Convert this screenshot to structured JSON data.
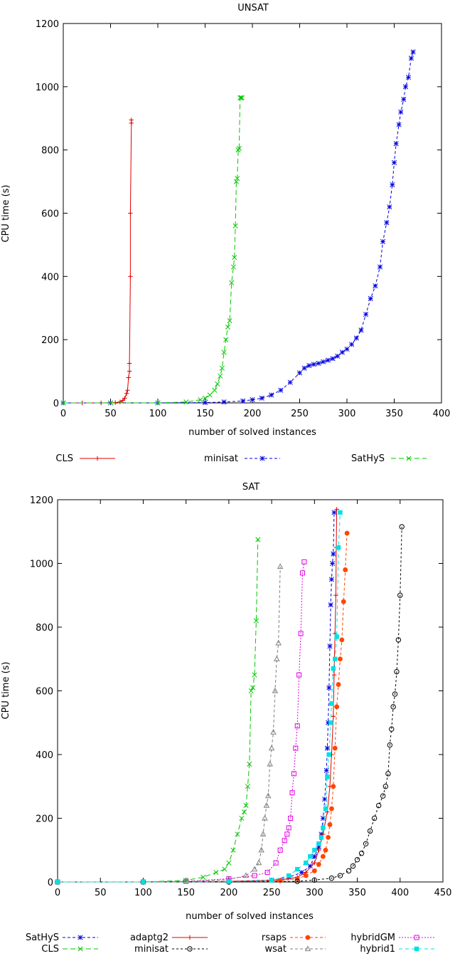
{
  "chart_data": [
    {
      "type": "line",
      "title": "UNSAT",
      "xlabel": "number of solved instances",
      "ylabel": "CPU time (s)",
      "xlim": [
        0,
        400
      ],
      "ylim": [
        0,
        1200
      ],
      "xticks": [
        "0",
        "50",
        "100",
        "150",
        "200",
        "250",
        "300",
        "350",
        "400"
      ],
      "yticks": [
        "0",
        "200",
        "400",
        "600",
        "800",
        "1000",
        "1200"
      ],
      "series": [
        {
          "name": "CLS",
          "color": "#e00000",
          "marker": "plus",
          "dash": "solid",
          "x": [
            0,
            20,
            40,
            55,
            60,
            63,
            65,
            67,
            68,
            69,
            70,
            70,
            71,
            71,
            72,
            72
          ],
          "y": [
            0,
            0,
            0,
            1,
            3,
            8,
            15,
            30,
            40,
            80,
            100,
            125,
            400,
            600,
            885,
            895
          ]
        },
        {
          "name": "minisat",
          "color": "#0000e0",
          "marker": "star",
          "dash": "4,3",
          "x": [
            0,
            50,
            100,
            150,
            170,
            190,
            200,
            210,
            220,
            230,
            240,
            250,
            255,
            260,
            265,
            270,
            275,
            280,
            285,
            290,
            295,
            300,
            305,
            310,
            315,
            320,
            325,
            330,
            335,
            338,
            342,
            345,
            348,
            350,
            352,
            355,
            357,
            360,
            362,
            365,
            368,
            370
          ],
          "y": [
            0,
            0,
            0,
            1,
            3,
            6,
            10,
            15,
            25,
            40,
            65,
            95,
            110,
            118,
            122,
            125,
            130,
            135,
            140,
            148,
            160,
            170,
            185,
            205,
            230,
            280,
            330,
            370,
            430,
            510,
            570,
            620,
            690,
            760,
            820,
            880,
            920,
            960,
            1000,
            1030,
            1090,
            1110
          ]
        },
        {
          "name": "SatHyS",
          "color": "#00c800",
          "marker": "cross",
          "dash": "7,4",
          "x": [
            0,
            50,
            100,
            130,
            145,
            150,
            155,
            160,
            163,
            166,
            168,
            170,
            172,
            174,
            176,
            178,
            180,
            181,
            182,
            183,
            184,
            185,
            186,
            187,
            188,
            189
          ],
          "y": [
            0,
            0,
            0,
            3,
            10,
            15,
            25,
            40,
            60,
            85,
            110,
            160,
            200,
            240,
            260,
            380,
            430,
            460,
            560,
            700,
            710,
            800,
            805,
            965,
            965,
            965
          ]
        }
      ],
      "legend": {
        "placement": "below",
        "entries": [
          "CLS",
          "minisat",
          "SatHyS"
        ]
      }
    },
    {
      "type": "line",
      "title": "SAT",
      "xlabel": "number of solved instances",
      "ylabel": "CPU time (s)",
      "xlim": [
        0,
        450
      ],
      "ylim": [
        0,
        1200
      ],
      "xticks": [
        "0",
        "50",
        "100",
        "150",
        "200",
        "250",
        "300",
        "350",
        "400",
        "450"
      ],
      "yticks": [
        "0",
        "200",
        "400",
        "600",
        "800",
        "1000",
        "1200"
      ],
      "series": [
        {
          "name": "SatHyS",
          "color": "#0000e0",
          "marker": "star",
          "dash": "4,3",
          "x": [
            0,
            100,
            200,
            250,
            270,
            285,
            295,
            300,
            305,
            308,
            310,
            312,
            314,
            315,
            316,
            317,
            318,
            319,
            320,
            321,
            322,
            323
          ],
          "y": [
            0,
            0,
            2,
            6,
            15,
            30,
            50,
            80,
            110,
            150,
            200,
            260,
            350,
            420,
            500,
            610,
            740,
            870,
            950,
            1000,
            1030,
            1160
          ]
        },
        {
          "name": "adaptg2",
          "color": "#e00000",
          "marker": "plus",
          "dash": "solid",
          "x": [
            0,
            100,
            200,
            260,
            280,
            290,
            300,
            305,
            310,
            315,
            318,
            320,
            322,
            323,
            324,
            325,
            325.5,
            326
          ],
          "y": [
            0,
            0,
            2,
            6,
            15,
            30,
            60,
            100,
            150,
            220,
            300,
            400,
            520,
            650,
            780,
            900,
            1050,
            1170
          ]
        },
        {
          "name": "rsaps",
          "color": "#ff4500",
          "marker": "dot",
          "dash": "4,3",
          "x": [
            0,
            100,
            200,
            260,
            280,
            290,
            300,
            305,
            310,
            313,
            316,
            318,
            320,
            322,
            324,
            326,
            328,
            330,
            332,
            334,
            336,
            338
          ],
          "y": [
            0,
            0,
            1,
            4,
            10,
            20,
            35,
            55,
            80,
            100,
            140,
            180,
            230,
            300,
            420,
            550,
            620,
            700,
            760,
            880,
            980,
            1095
          ]
        },
        {
          "name": "hybridGM",
          "color": "#e000e0",
          "marker": "square",
          "dash": "2,2",
          "x": [
            0,
            100,
            150,
            200,
            230,
            245,
            255,
            260,
            265,
            268,
            270,
            272,
            274,
            276,
            278,
            280,
            282,
            284,
            286,
            288
          ],
          "y": [
            0,
            0,
            2,
            10,
            20,
            30,
            60,
            100,
            130,
            150,
            170,
            200,
            280,
            340,
            420,
            490,
            650,
            780,
            970,
            1005
          ]
        },
        {
          "name": "CLS",
          "color": "#00c800",
          "marker": "cross",
          "dash": "7,4",
          "x": [
            0,
            100,
            150,
            170,
            185,
            195,
            200,
            205,
            210,
            215,
            218,
            220,
            222,
            224,
            226,
            228,
            230,
            232,
            234
          ],
          "y": [
            0,
            0,
            5,
            15,
            30,
            40,
            60,
            100,
            150,
            200,
            220,
            240,
            300,
            370,
            600,
            610,
            650,
            820,
            1075
          ]
        },
        {
          "name": "minisat",
          "color": "#000000",
          "marker": "circle",
          "dash": "3,3",
          "x": [
            0,
            100,
            200,
            280,
            300,
            320,
            330,
            340,
            345,
            350,
            355,
            360,
            365,
            370,
            375,
            380,
            383,
            386,
            388,
            390,
            392,
            394,
            396,
            398,
            400,
            402
          ],
          "y": [
            0,
            0,
            0,
            2,
            6,
            12,
            20,
            35,
            50,
            70,
            90,
            120,
            160,
            200,
            240,
            270,
            300,
            340,
            430,
            480,
            550,
            590,
            660,
            760,
            900,
            1115
          ]
        },
        {
          "name": "wsat",
          "color": "#808080",
          "marker": "triangle",
          "dash": "4,3",
          "x": [
            0,
            100,
            150,
            200,
            220,
            230,
            235,
            238,
            240,
            242,
            244,
            246,
            248,
            250,
            252,
            254,
            256,
            258,
            260
          ],
          "y": [
            0,
            0,
            2,
            8,
            20,
            40,
            60,
            100,
            150,
            200,
            240,
            270,
            370,
            420,
            470,
            600,
            700,
            750,
            990
          ]
        },
        {
          "name": "hybrid1",
          "color": "#00e0e0",
          "marker": "fsquare",
          "dash": "5,4",
          "x": [
            0,
            100,
            200,
            250,
            270,
            280,
            290,
            295,
            300,
            305,
            308,
            310,
            313,
            315,
            317,
            319,
            320,
            322,
            324,
            326,
            328,
            330
          ],
          "y": [
            0,
            0,
            1,
            5,
            20,
            40,
            60,
            80,
            100,
            120,
            140,
            170,
            230,
            330,
            400,
            500,
            560,
            670,
            700,
            770,
            1050,
            1160
          ]
        }
      ],
      "legend": {
        "placement": "below",
        "entries": [
          "SatHyS",
          "CLS",
          "adaptg2",
          "minisat",
          "rsaps",
          "wsat",
          "hybridGM",
          "hybrid1"
        ]
      }
    }
  ]
}
